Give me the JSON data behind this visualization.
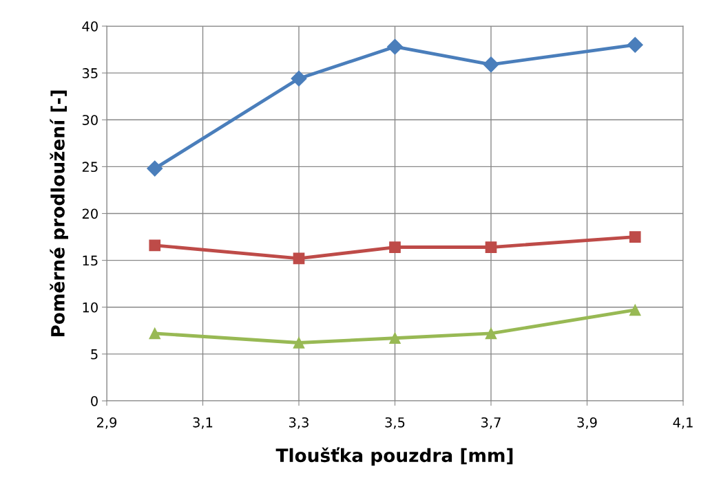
{
  "chart_data": {
    "type": "line",
    "xlabel": "Tloušťka pouzdra [mm]",
    "ylabel": "Poměrné prodloužení [-]",
    "x": [
      3.0,
      3.3,
      3.5,
      3.7,
      4.0
    ],
    "series": [
      {
        "color": "#4a7ebb",
        "marker": "diamond",
        "values": [
          24.8,
          34.4,
          37.8,
          35.9,
          38.0
        ]
      },
      {
        "color": "#be4b48",
        "marker": "square",
        "values": [
          16.6,
          15.2,
          16.4,
          16.4,
          17.5
        ]
      },
      {
        "color": "#98b954",
        "marker": "triangle",
        "values": [
          7.2,
          6.2,
          6.7,
          7.2,
          9.7
        ]
      }
    ],
    "xlim": [
      2.9,
      4.1
    ],
    "xticks": [
      {
        "value": 2.9,
        "label": "2,9"
      },
      {
        "value": 3.1,
        "label": "3,1"
      },
      {
        "value": 3.3,
        "label": "3,3"
      },
      {
        "value": 3.5,
        "label": "3,5"
      },
      {
        "value": 3.7,
        "label": "3,7"
      },
      {
        "value": 3.9,
        "label": "3,9"
      },
      {
        "value": 4.1,
        "label": "4,1"
      }
    ],
    "ylim": [
      0,
      40
    ],
    "yticks": [
      0,
      5,
      10,
      15,
      20,
      25,
      30,
      35,
      40
    ],
    "grid": true,
    "line_style": "solid"
  }
}
